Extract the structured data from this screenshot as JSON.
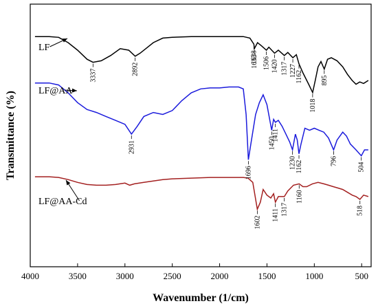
{
  "chart_data": {
    "type": "line",
    "title": "",
    "xlabel": "Wavenumber (1/cm)",
    "ylabel": "Transmittance (%)",
    "xlim": [
      4000,
      400
    ],
    "x_ticks": [
      4000,
      3500,
      3000,
      2500,
      2000,
      1500,
      1000,
      500
    ],
    "y_ticks_shown": false,
    "grid": false,
    "series": [
      {
        "name": "LF",
        "color": "#000000",
        "points": [
          [
            3950,
            0.88
          ],
          [
            3800,
            0.88
          ],
          [
            3700,
            0.87
          ],
          [
            3600,
            0.8
          ],
          [
            3500,
            0.7
          ],
          [
            3400,
            0.58
          ],
          [
            3337,
            0.54
          ],
          [
            3250,
            0.56
          ],
          [
            3150,
            0.63
          ],
          [
            3050,
            0.72
          ],
          [
            2960,
            0.7
          ],
          [
            2892,
            0.62
          ],
          [
            2840,
            0.66
          ],
          [
            2780,
            0.72
          ],
          [
            2700,
            0.8
          ],
          [
            2600,
            0.86
          ],
          [
            2500,
            0.87
          ],
          [
            2300,
            0.88
          ],
          [
            2100,
            0.88
          ],
          [
            1900,
            0.88
          ],
          [
            1750,
            0.88
          ],
          [
            1680,
            0.86
          ],
          [
            1638,
            0.78
          ],
          [
            1633,
            0.72
          ],
          [
            1600,
            0.8
          ],
          [
            1560,
            0.76
          ],
          [
            1506,
            0.7
          ],
          [
            1480,
            0.74
          ],
          [
            1420,
            0.66
          ],
          [
            1380,
            0.7
          ],
          [
            1317,
            0.63
          ],
          [
            1280,
            0.67
          ],
          [
            1227,
            0.6
          ],
          [
            1190,
            0.64
          ],
          [
            1162,
            0.52
          ],
          [
            1120,
            0.4
          ],
          [
            1060,
            0.25
          ],
          [
            1018,
            0.14
          ],
          [
            990,
            0.3
          ],
          [
            960,
            0.48
          ],
          [
            930,
            0.55
          ],
          [
            895,
            0.45
          ],
          [
            860,
            0.58
          ],
          [
            820,
            0.6
          ],
          [
            760,
            0.56
          ],
          [
            700,
            0.48
          ],
          [
            650,
            0.38
          ],
          [
            600,
            0.3
          ],
          [
            560,
            0.25
          ],
          [
            520,
            0.28
          ],
          [
            480,
            0.26
          ],
          [
            430,
            0.3
          ]
        ],
        "peaks": [
          3337,
          2892,
          1638,
          1633,
          1506,
          1420,
          1317,
          1227,
          1162,
          1018,
          895
        ]
      },
      {
        "name": "LF@AA",
        "color": "#1a1adc",
        "points": [
          [
            3950,
            0.82
          ],
          [
            3800,
            0.82
          ],
          [
            3700,
            0.8
          ],
          [
            3600,
            0.72
          ],
          [
            3500,
            0.62
          ],
          [
            3400,
            0.55
          ],
          [
            3300,
            0.52
          ],
          [
            3200,
            0.48
          ],
          [
            3100,
            0.44
          ],
          [
            3000,
            0.4
          ],
          [
            2931,
            0.3
          ],
          [
            2870,
            0.38
          ],
          [
            2800,
            0.48
          ],
          [
            2700,
            0.52
          ],
          [
            2600,
            0.5
          ],
          [
            2500,
            0.54
          ],
          [
            2400,
            0.64
          ],
          [
            2300,
            0.72
          ],
          [
            2200,
            0.76
          ],
          [
            2100,
            0.77
          ],
          [
            2000,
            0.77
          ],
          [
            1900,
            0.78
          ],
          [
            1800,
            0.78
          ],
          [
            1750,
            0.76
          ],
          [
            1720,
            0.5
          ],
          [
            1696,
            0.04
          ],
          [
            1670,
            0.2
          ],
          [
            1620,
            0.5
          ],
          [
            1580,
            0.62
          ],
          [
            1540,
            0.7
          ],
          [
            1500,
            0.6
          ],
          [
            1450,
            0.34
          ],
          [
            1430,
            0.45
          ],
          [
            1411,
            0.42
          ],
          [
            1380,
            0.44
          ],
          [
            1340,
            0.38
          ],
          [
            1300,
            0.3
          ],
          [
            1260,
            0.22
          ],
          [
            1230,
            0.14
          ],
          [
            1200,
            0.3
          ],
          [
            1180,
            0.24
          ],
          [
            1162,
            0.1
          ],
          [
            1140,
            0.2
          ],
          [
            1100,
            0.36
          ],
          [
            1050,
            0.34
          ],
          [
            1000,
            0.36
          ],
          [
            950,
            0.34
          ],
          [
            900,
            0.32
          ],
          [
            850,
            0.26
          ],
          [
            796,
            0.14
          ],
          [
            760,
            0.24
          ],
          [
            700,
            0.32
          ],
          [
            660,
            0.28
          ],
          [
            620,
            0.2
          ],
          [
            560,
            0.14
          ],
          [
            504,
            0.08
          ],
          [
            470,
            0.14
          ],
          [
            430,
            0.14
          ]
        ],
        "peaks": [
          2931,
          1696,
          1450,
          1411,
          1230,
          1162,
          796,
          504
        ]
      },
      {
        "name": "LF@AA-Cd",
        "color": "#a31f1f",
        "points": [
          [
            3950,
            0.98
          ],
          [
            3800,
            0.98
          ],
          [
            3700,
            0.97
          ],
          [
            3600,
            0.94
          ],
          [
            3500,
            0.9
          ],
          [
            3400,
            0.87
          ],
          [
            3300,
            0.86
          ],
          [
            3200,
            0.86
          ],
          [
            3100,
            0.87
          ],
          [
            3000,
            0.89
          ],
          [
            2950,
            0.86
          ],
          [
            2900,
            0.88
          ],
          [
            2800,
            0.9
          ],
          [
            2700,
            0.92
          ],
          [
            2600,
            0.94
          ],
          [
            2500,
            0.95
          ],
          [
            2300,
            0.96
          ],
          [
            2100,
            0.97
          ],
          [
            1900,
            0.97
          ],
          [
            1750,
            0.97
          ],
          [
            1700,
            0.96
          ],
          [
            1650,
            0.9
          ],
          [
            1602,
            0.52
          ],
          [
            1570,
            0.62
          ],
          [
            1540,
            0.8
          ],
          [
            1500,
            0.72
          ],
          [
            1460,
            0.68
          ],
          [
            1430,
            0.74
          ],
          [
            1411,
            0.62
          ],
          [
            1380,
            0.7
          ],
          [
            1317,
            0.7
          ],
          [
            1280,
            0.78
          ],
          [
            1220,
            0.86
          ],
          [
            1160,
            0.88
          ],
          [
            1120,
            0.84
          ],
          [
            1080,
            0.84
          ],
          [
            1020,
            0.88
          ],
          [
            960,
            0.9
          ],
          [
            900,
            0.88
          ],
          [
            850,
            0.86
          ],
          [
            800,
            0.84
          ],
          [
            750,
            0.82
          ],
          [
            700,
            0.8
          ],
          [
            650,
            0.76
          ],
          [
            600,
            0.72
          ],
          [
            560,
            0.7
          ],
          [
            518,
            0.66
          ],
          [
            480,
            0.72
          ],
          [
            430,
            0.7
          ]
        ],
        "peaks": [
          1602,
          1411,
          1317,
          1160,
          518
        ]
      }
    ]
  }
}
